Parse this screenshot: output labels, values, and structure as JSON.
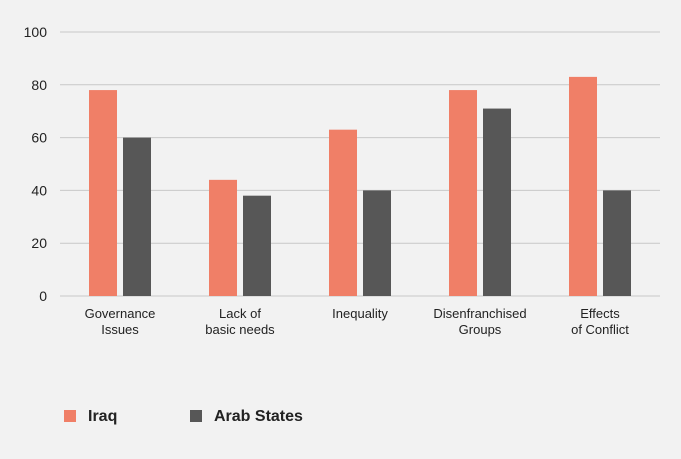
{
  "chart_data": {
    "type": "bar",
    "categories": [
      [
        "Governance",
        "Issues"
      ],
      [
        "Lack of",
        "basic needs"
      ],
      [
        "Inequality"
      ],
      [
        "Disenfranchised",
        "Groups"
      ],
      [
        "Effects",
        "of Conflict"
      ]
    ],
    "series": [
      {
        "name": "Iraq",
        "values": [
          78,
          44,
          63,
          78,
          83
        ],
        "color": "#f07f67"
      },
      {
        "name": "Arab States",
        "values": [
          60,
          38,
          40,
          71,
          40
        ],
        "color": "#575757"
      }
    ],
    "ylim": [
      0,
      100
    ],
    "yticks": [
      0,
      20,
      40,
      60,
      80,
      100
    ],
    "grid": true,
    "legend_position": "bottom-left"
  }
}
